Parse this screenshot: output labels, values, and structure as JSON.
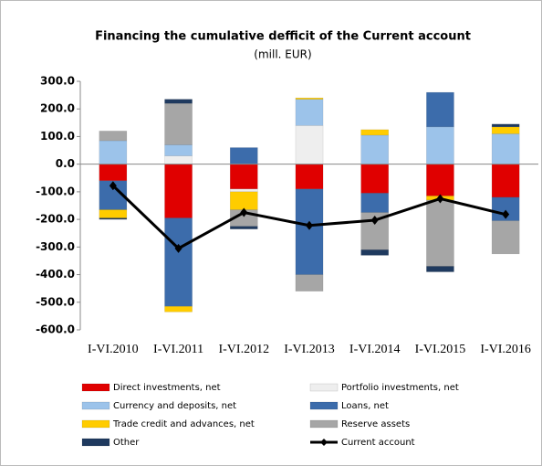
{
  "chart_data": {
    "type": "bar",
    "stacked": true,
    "title": "Financing  the cumulative  defficit of the Current account",
    "subtitle": "(mill. EUR)",
    "categories": [
      "I-VI.2010",
      "I-VI.2011",
      "I-VI.2012",
      "I-VI.2013",
      "I-VI.2014",
      "I-VI.2015",
      "I-VI.2016"
    ],
    "series": [
      {
        "name": "Direct investments, net",
        "color": "#e00000",
        "type": "bar",
        "values": [
          -60,
          -195,
          -90,
          -90,
          -105,
          -115,
          -120
        ]
      },
      {
        "name": "Portfolio investments, net",
        "color": "#eeeeee",
        "type": "bar",
        "values": [
          0,
          30,
          -10,
          140,
          0,
          0,
          0
        ]
      },
      {
        "name": "Currency and deposits, net",
        "color": "#9cc3ea",
        "type": "bar",
        "values": [
          85,
          40,
          0,
          95,
          105,
          135,
          110
        ]
      },
      {
        "name": "Loans, net",
        "color": "#3c6cab",
        "type": "bar",
        "values": [
          -105,
          -320,
          60,
          -310,
          -70,
          125,
          -85
        ]
      },
      {
        "name": "Trade credit and advances, net",
        "color": "#ffcc00",
        "type": "bar",
        "values": [
          -30,
          -20,
          -65,
          5,
          20,
          -15,
          25
        ]
      },
      {
        "name": "Reserve assets",
        "color": "#a6a6a6",
        "type": "bar",
        "values": [
          35,
          150,
          -60,
          -60,
          -135,
          -240,
          -120
        ]
      },
      {
        "name": "Other",
        "color": "#1f3a5f",
        "type": "bar",
        "values": [
          -5,
          15,
          -10,
          0,
          -20,
          -20,
          10
        ]
      },
      {
        "name": "Current account",
        "color": "#000000",
        "type": "line",
        "values": [
          -78,
          -305,
          -175,
          -222,
          -203,
          -125,
          -182
        ]
      }
    ],
    "ylim": [
      -600,
      300
    ],
    "yticks": [
      {
        "value": -600,
        "label": "-600.0"
      },
      {
        "value": -500,
        "label": "-500.0"
      },
      {
        "value": -400,
        "label": "-400.0"
      },
      {
        "value": -300,
        "label": "-300.0"
      },
      {
        "value": -200,
        "label": "-200.0"
      },
      {
        "value": -100,
        "label": "-100.0"
      },
      {
        "value": 0,
        "label": "0.0"
      },
      {
        "value": 100,
        "label": "100.0"
      },
      {
        "value": 200,
        "label": "200.0"
      },
      {
        "value": 300,
        "label": "300.0"
      }
    ]
  }
}
